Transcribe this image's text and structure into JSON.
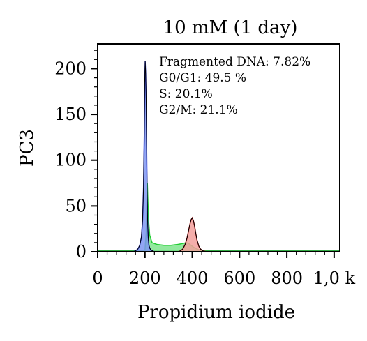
{
  "chart_data": {
    "type": "area",
    "title": "10 mM (1 day)",
    "xlabel": "Propidium iodide",
    "ylabel": "PC3",
    "xlim": [
      0,
      1024
    ],
    "ylim": [
      0,
      227
    ],
    "x_ticks": [
      {
        "value": 0,
        "label": "0"
      },
      {
        "value": 200,
        "label": "200"
      },
      {
        "value": 400,
        "label": "400"
      },
      {
        "value": 600,
        "label": "600"
      },
      {
        "value": 800,
        "label": "800"
      },
      {
        "value": 1000,
        "label": "1,0 k"
      }
    ],
    "y_ticks": [
      {
        "value": 0,
        "label": "0"
      },
      {
        "value": 50,
        "label": "50"
      },
      {
        "value": 100,
        "label": "100"
      },
      {
        "value": 150,
        "label": "150"
      },
      {
        "value": 200,
        "label": "200"
      }
    ],
    "annotations": [
      "Fragmented DNA: 7.82%",
      "G0/G1: 49.5 %",
      "S: 20.1%",
      "G2/M: 21.1%"
    ],
    "grid": false,
    "colors": {
      "g0g1": "#3355ee",
      "s_phase": "#33cc44",
      "g2m": "#ee5555",
      "fragmented": "#33aa44",
      "outline": "#000000"
    },
    "series": [
      {
        "name": "G0/G1",
        "fill": "#7f97f2",
        "stroke": "#2233dd",
        "x": [
          150,
          160,
          170,
          178,
          185,
          190,
          194,
          197,
          199,
          201,
          203,
          205,
          207,
          209,
          211,
          214,
          217,
          220,
          225,
          232,
          240
        ],
        "values": [
          0,
          1,
          3,
          7,
          16,
          35,
          70,
          130,
          185,
          208,
          195,
          165,
          120,
          70,
          35,
          15,
          7,
          4,
          2,
          1,
          0
        ]
      },
      {
        "name": "S",
        "fill": "#7fe58d",
        "stroke": "#22cc33",
        "x": [
          190,
          200,
          205,
          208,
          210,
          212,
          215,
          220,
          230,
          250,
          280,
          310,
          340,
          360,
          375,
          385,
          395,
          405,
          420,
          440,
          460
        ],
        "values": [
          0,
          2,
          20,
          55,
          75,
          60,
          35,
          18,
          10,
          8,
          7,
          7,
          8,
          9,
          10,
          9,
          7,
          5,
          3,
          1,
          0
        ]
      },
      {
        "name": "G2/M",
        "fill": "#f2a09c",
        "stroke": "#cc2222",
        "x": [
          340,
          350,
          360,
          370,
          378,
          385,
          390,
          395,
          400,
          405,
          410,
          415,
          420,
          428,
          435,
          445,
          460
        ],
        "values": [
          0,
          1,
          3,
          8,
          15,
          24,
          30,
          35,
          37,
          34,
          28,
          20,
          13,
          6,
          3,
          1,
          0
        ]
      },
      {
        "name": "Fragmented DNA",
        "fill": "#a8dba8",
        "stroke": "#33aa44",
        "x": [
          0,
          100,
          140,
          150,
          160,
          180,
          460,
          480,
          600,
          800,
          1024
        ],
        "values": [
          1,
          1,
          1,
          1,
          1,
          1,
          1,
          1,
          1,
          1,
          1
        ]
      }
    ]
  }
}
